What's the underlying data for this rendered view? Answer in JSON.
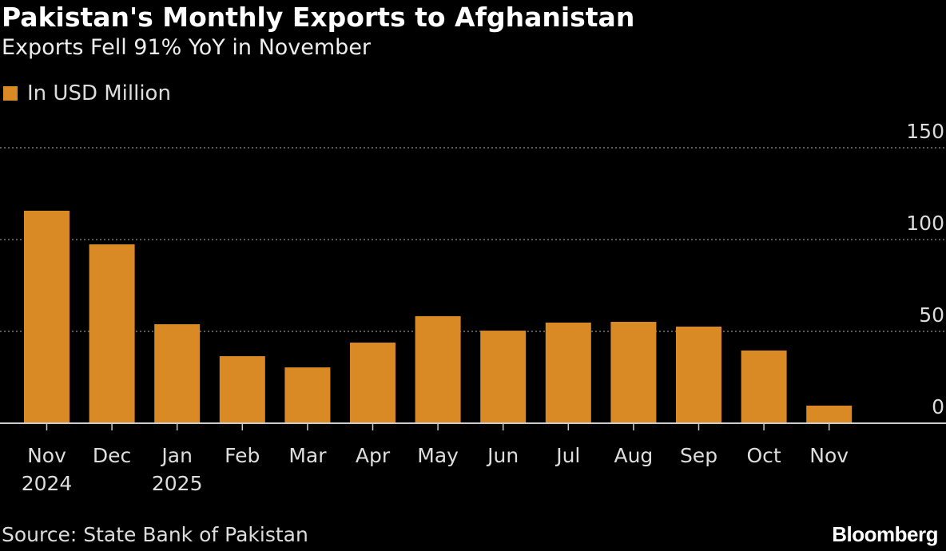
{
  "header": {
    "title": "Pakistan's Monthly Exports to Afghanistan",
    "subtitle": "Exports Fell 91% YoY in November"
  },
  "footer": {
    "source": "Source: State Bank of Pakistan",
    "logo": "Bloomberg"
  },
  "colors": {
    "bar": "#DA8A25",
    "background": "#000000",
    "grid": "#777777"
  },
  "chart_data": {
    "type": "bar",
    "title": "Pakistan's Monthly Exports to Afghanistan",
    "subtitle": "Exports Fell 91% YoY in November",
    "categories": [
      [
        "Nov",
        "2024"
      ],
      [
        "Dec",
        ""
      ],
      [
        "Jan",
        "2025"
      ],
      [
        "Feb",
        ""
      ],
      [
        "Mar",
        ""
      ],
      [
        "Apr",
        ""
      ],
      [
        "May",
        ""
      ],
      [
        "Jun",
        ""
      ],
      [
        "Jul",
        ""
      ],
      [
        "Aug",
        ""
      ],
      [
        "Sep",
        ""
      ],
      [
        "Oct",
        ""
      ],
      [
        "Nov",
        ""
      ]
    ],
    "series": [
      {
        "name": "In USD Million",
        "values": [
          115.7,
          97.4,
          53.9,
          36.5,
          30.4,
          43.9,
          58.3,
          50.4,
          54.8,
          55.2,
          52.6,
          39.6,
          9.6
        ]
      }
    ],
    "yticks": [
      0,
      50,
      100,
      150
    ],
    "ylim": [
      0,
      150
    ],
    "grid": true,
    "yaxis_position": "right",
    "legend": "top-left"
  }
}
